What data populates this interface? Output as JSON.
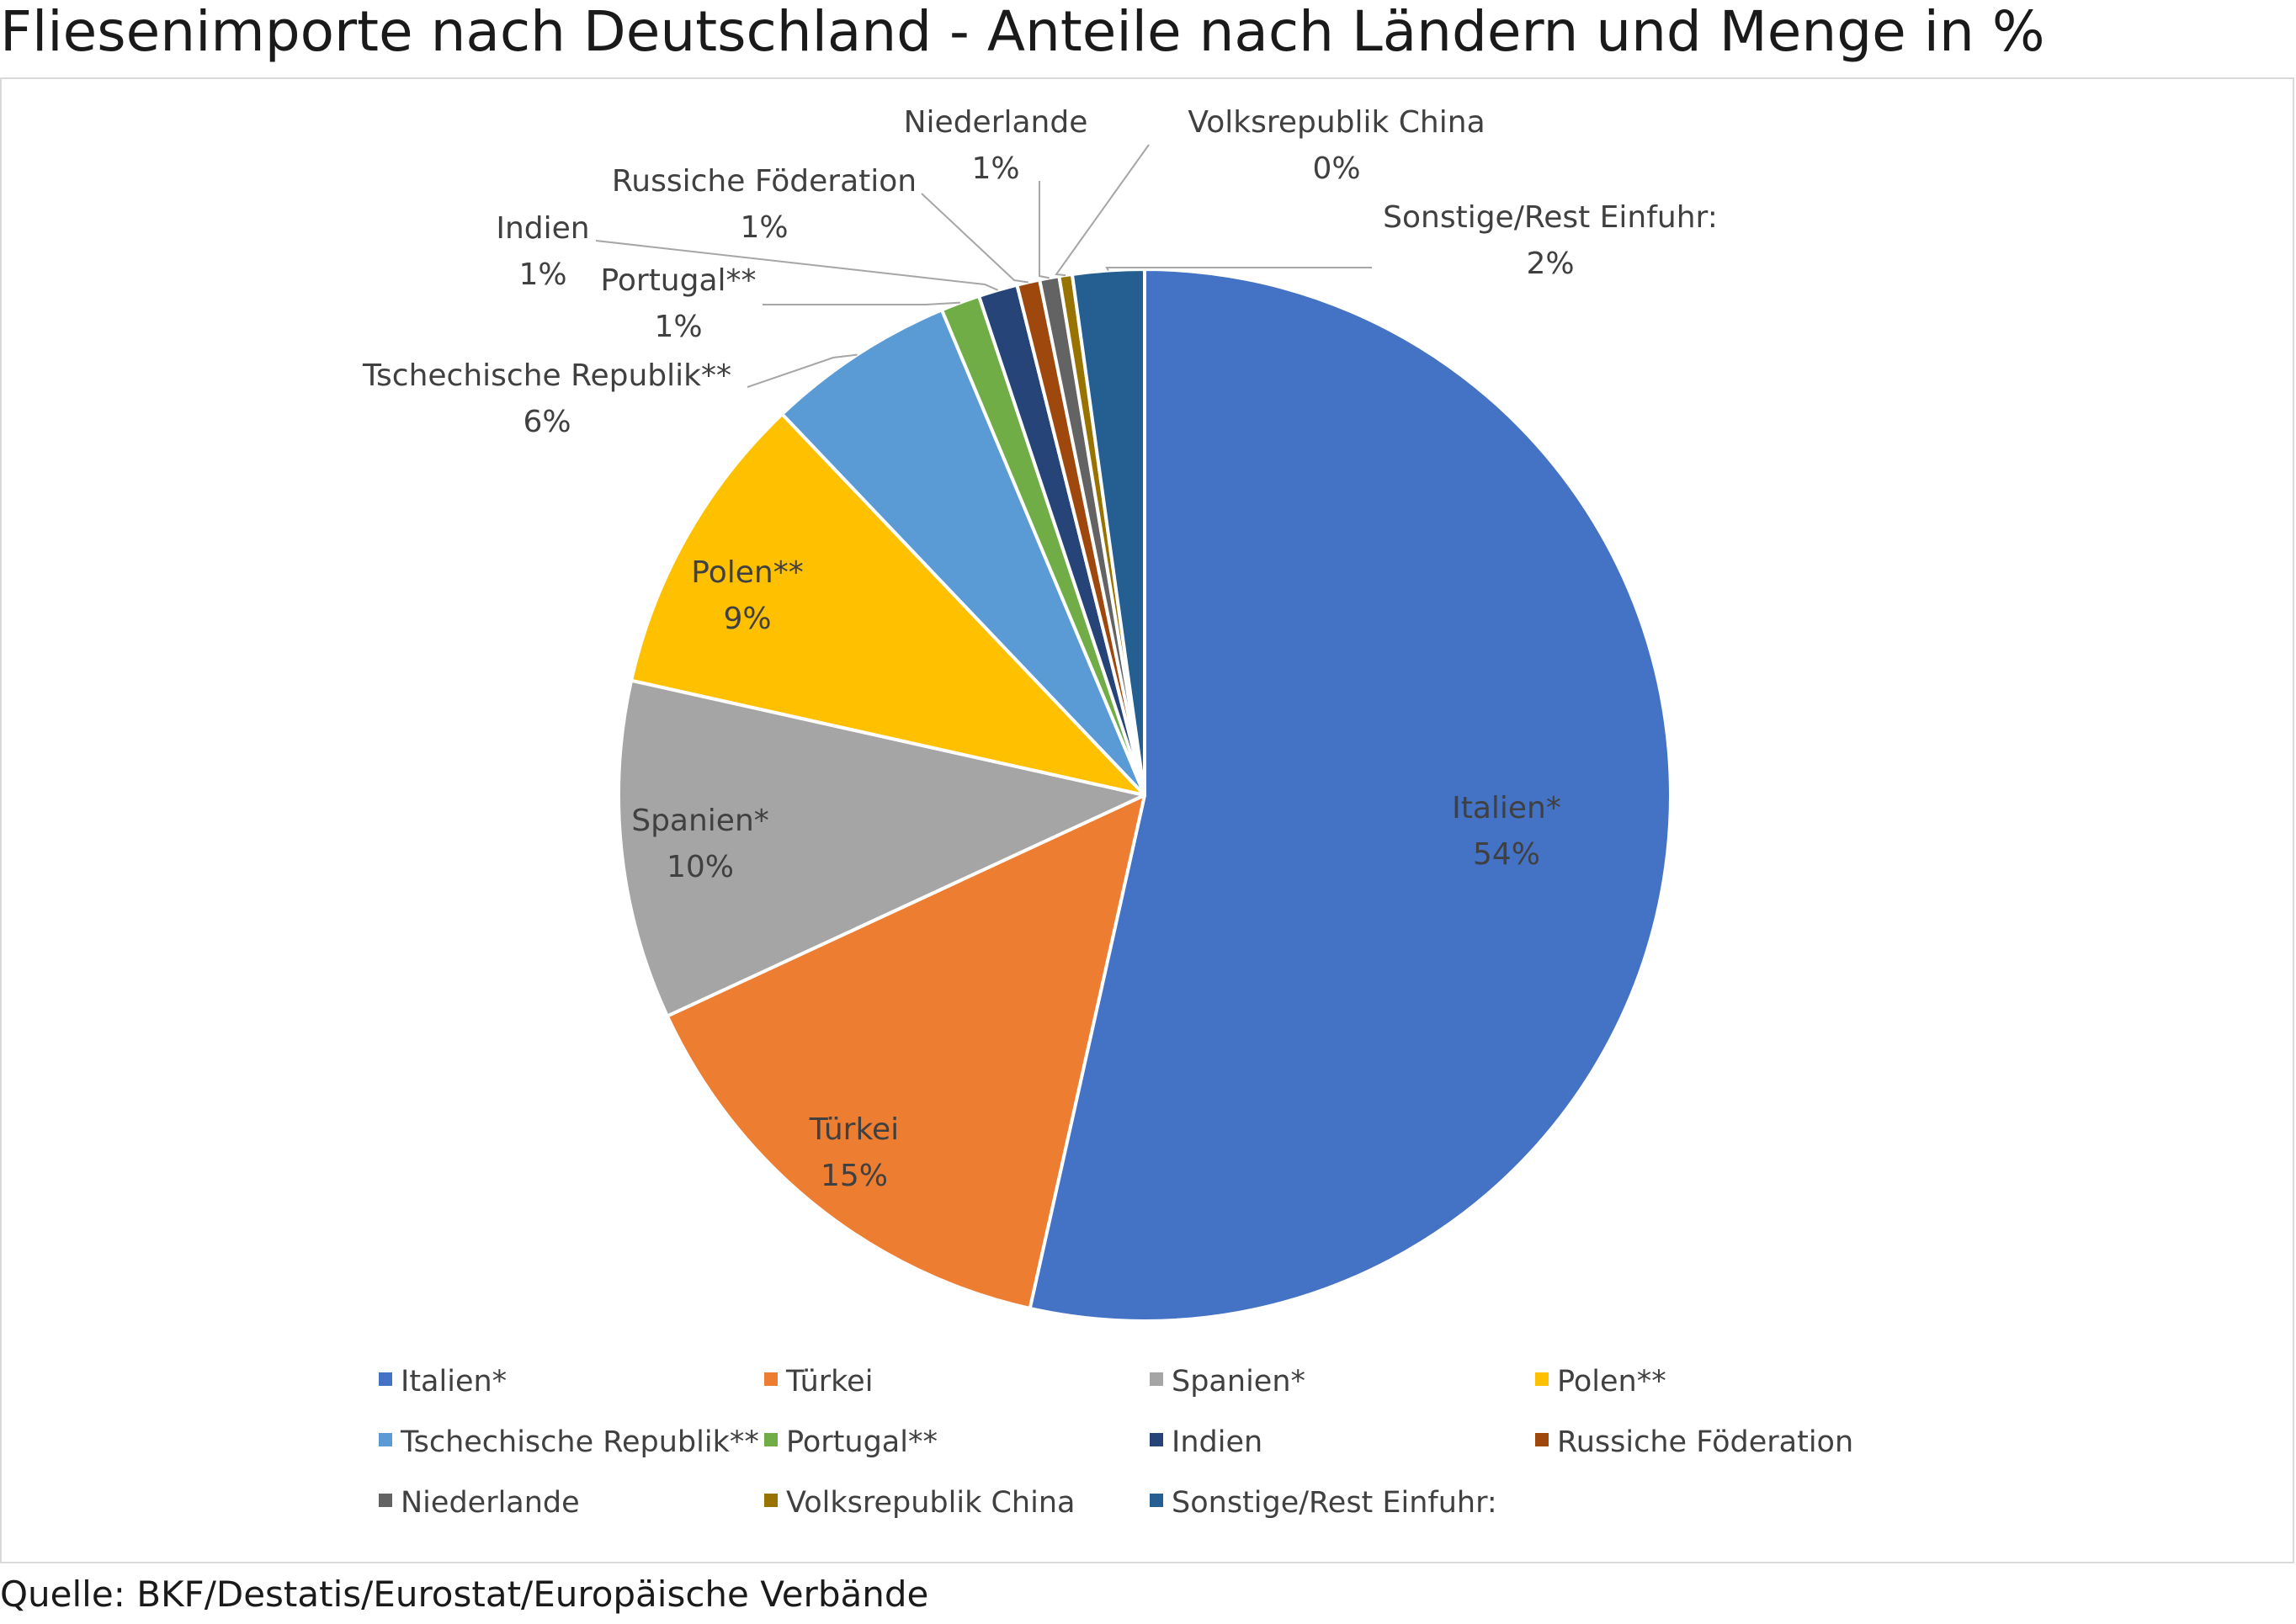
{
  "title": "Fliesenimporte nach Deutschland - Anteile nach Ländern und Menge in %",
  "source": "Quelle: BKF/Destatis/Eurostat/Europäische Verbände",
  "chart_data": {
    "type": "pie",
    "title": "Fliesenimporte nach Deutschland - Anteile nach Ländern und Menge in %",
    "legend_position": "bottom",
    "slices": [
      {
        "name": "Italien*",
        "value": 53.5,
        "label": "54%",
        "color": "#4472C4"
      },
      {
        "name": "Türkei",
        "value": 14.6,
        "label": "15%",
        "color": "#ED7D31"
      },
      {
        "name": "Spanien*",
        "value": 10.4,
        "label": "10%",
        "color": "#A5A5A5"
      },
      {
        "name": "Polen**",
        "value": 9.4,
        "label": "9%",
        "color": "#FFC000"
      },
      {
        "name": "Tschechische Republik**",
        "value": 5.8,
        "label": "6%",
        "color": "#5B9BD5"
      },
      {
        "name": "Portugal**",
        "value": 1.2,
        "label": "1%",
        "color": "#70AD47"
      },
      {
        "name": "Indien",
        "value": 1.2,
        "label": "1%",
        "color": "#264478"
      },
      {
        "name": "Russiche Föderation",
        "value": 0.7,
        "label": "1%",
        "color": "#9E480E"
      },
      {
        "name": "Niederlande",
        "value": 0.6,
        "label": "1%",
        "color": "#636363"
      },
      {
        "name": "Volksrepublik China",
        "value": 0.4,
        "label": "0%",
        "color": "#997300"
      },
      {
        "name": "Sonstige/Rest Einfuhr:",
        "value": 2.2,
        "label": "2%",
        "color": "#255E91"
      }
    ]
  }
}
